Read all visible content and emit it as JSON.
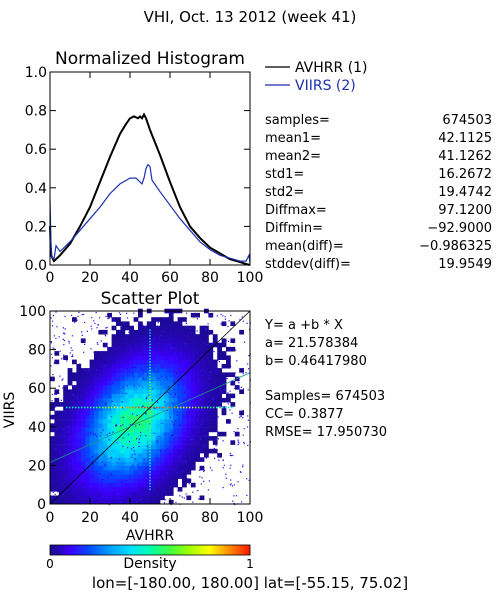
{
  "page_title": "VHI,  Oct. 13 2012 (week 41)",
  "colors": {
    "avhrr": "#000000",
    "viirs": "#1c2fb0"
  },
  "footer": {
    "prefix": "lon=",
    "lon": "[-180.00, 180.00]",
    "mid": " lat=",
    "lat": "[-55.15, 75.02]"
  },
  "stats": [
    {
      "label": "samples=",
      "value": "674503"
    },
    {
      "label": "mean1=",
      "value": "42.1125"
    },
    {
      "label": "mean2=",
      "value": "41.1262"
    },
    {
      "label": "std1=",
      "value": "16.2672"
    },
    {
      "label": "std2=",
      "value": "19.4742"
    },
    {
      "label": "Diffmax=",
      "value": "97.1200"
    },
    {
      "label": "Diffmin=",
      "value": "-92.9000"
    },
    {
      "label": "mean(diff)=",
      "value": "-0.986325"
    },
    {
      "label": "stddev(diff)=",
      "value": "19.9549"
    }
  ],
  "regression": {
    "equation": "Y= a +b * X",
    "a_text": "a= 21.578384",
    "b_text": "b= 0.46417980",
    "samples_text": "Samples= 674503",
    "cc_text": "CC=  0.3877",
    "rmse_text": "RMSE= 17.950730"
  },
  "chart_data": [
    {
      "type": "line",
      "title": "Normalized Histogram",
      "xlim": [
        0,
        100
      ],
      "ylim": [
        0,
        1.0
      ],
      "x_ticks": [
        0,
        20,
        40,
        60,
        80,
        100
      ],
      "y_ticks": [
        0.0,
        0.2,
        0.4,
        0.6,
        0.8,
        1.0
      ],
      "x_tick_labels": [
        "0",
        "20",
        "40",
        "60",
        "80",
        "100"
      ],
      "y_tick_labels": [
        "0.0",
        "0.2",
        "0.4",
        "0.6",
        "0.8",
        "1.0"
      ],
      "legend_position": "top-right-outside",
      "series": [
        {
          "name": "AVHRR (1)",
          "color": "#000000",
          "points": [
            [
              0,
              0.2
            ],
            [
              0.5,
              0.05
            ],
            [
              2,
              0.02
            ],
            [
              5,
              0.05
            ],
            [
              10,
              0.11
            ],
            [
              15,
              0.2
            ],
            [
              20,
              0.3
            ],
            [
              25,
              0.43
            ],
            [
              30,
              0.56
            ],
            [
              35,
              0.68
            ],
            [
              38,
              0.73
            ],
            [
              40,
              0.76
            ],
            [
              42,
              0.77
            ],
            [
              44,
              0.76
            ],
            [
              45,
              0.77
            ],
            [
              46,
              0.76
            ],
            [
              47,
              0.78
            ],
            [
              48,
              0.76
            ],
            [
              50,
              0.7
            ],
            [
              55,
              0.57
            ],
            [
              60,
              0.43
            ],
            [
              65,
              0.3
            ],
            [
              70,
              0.2
            ],
            [
              75,
              0.14
            ],
            [
              80,
              0.09
            ],
            [
              85,
              0.06
            ],
            [
              90,
              0.03
            ],
            [
              95,
              0.015
            ],
            [
              98,
              0.005
            ],
            [
              100,
              0.0
            ]
          ]
        },
        {
          "name": "VIIRS (2)",
          "color": "#1c2fb0",
          "points": [
            [
              0,
              0.34
            ],
            [
              0.5,
              0.1
            ],
            [
              1,
              0.04
            ],
            [
              2,
              0.03
            ],
            [
              3,
              0.1
            ],
            [
              5,
              0.07
            ],
            [
              10,
              0.12
            ],
            [
              15,
              0.18
            ],
            [
              20,
              0.24
            ],
            [
              25,
              0.3
            ],
            [
              30,
              0.37
            ],
            [
              35,
              0.42
            ],
            [
              40,
              0.45
            ],
            [
              43,
              0.45
            ],
            [
              46,
              0.42
            ],
            [
              47,
              0.45
            ],
            [
              48,
              0.5
            ],
            [
              49,
              0.52
            ],
            [
              50,
              0.51
            ],
            [
              51,
              0.44
            ],
            [
              55,
              0.38
            ],
            [
              60,
              0.31
            ],
            [
              65,
              0.24
            ],
            [
              70,
              0.18
            ],
            [
              75,
              0.12
            ],
            [
              80,
              0.08
            ],
            [
              85,
              0.05
            ],
            [
              90,
              0.035
            ],
            [
              95,
              0.02
            ],
            [
              98,
              0.02
            ],
            [
              99.5,
              0.05
            ],
            [
              100,
              0.01
            ]
          ]
        }
      ]
    },
    {
      "type": "heatmap",
      "title": "Scatter Plot",
      "xlabel": "AVHRR",
      "ylabel": "VIIRS",
      "xlim": [
        0,
        100
      ],
      "ylim": [
        0,
        100
      ],
      "x_ticks": [
        0,
        20,
        40,
        60,
        80,
        100
      ],
      "y_ticks": [
        0,
        20,
        40,
        60,
        80,
        100
      ],
      "x_tick_labels": [
        "0",
        "20",
        "40",
        "60",
        "80",
        "100"
      ],
      "y_tick_labels": [
        "0",
        "20",
        "40",
        "60",
        "80",
        "100"
      ],
      "density_center": [
        42,
        42
      ],
      "density_spread": [
        16,
        19
      ],
      "regression_line": {
        "a": 21.578384,
        "b": 0.4641798
      },
      "colorbar": {
        "label": "Density",
        "min_label": "0",
        "max_label": "1",
        "stops": [
          "#1a0a8c",
          "#3b00ff",
          "#0050ff",
          "#00a0ff",
          "#00e0ff",
          "#00ffb0",
          "#40ff40",
          "#a0ff00",
          "#ffff00",
          "#ff8c00",
          "#ff1e00"
        ]
      }
    }
  ]
}
